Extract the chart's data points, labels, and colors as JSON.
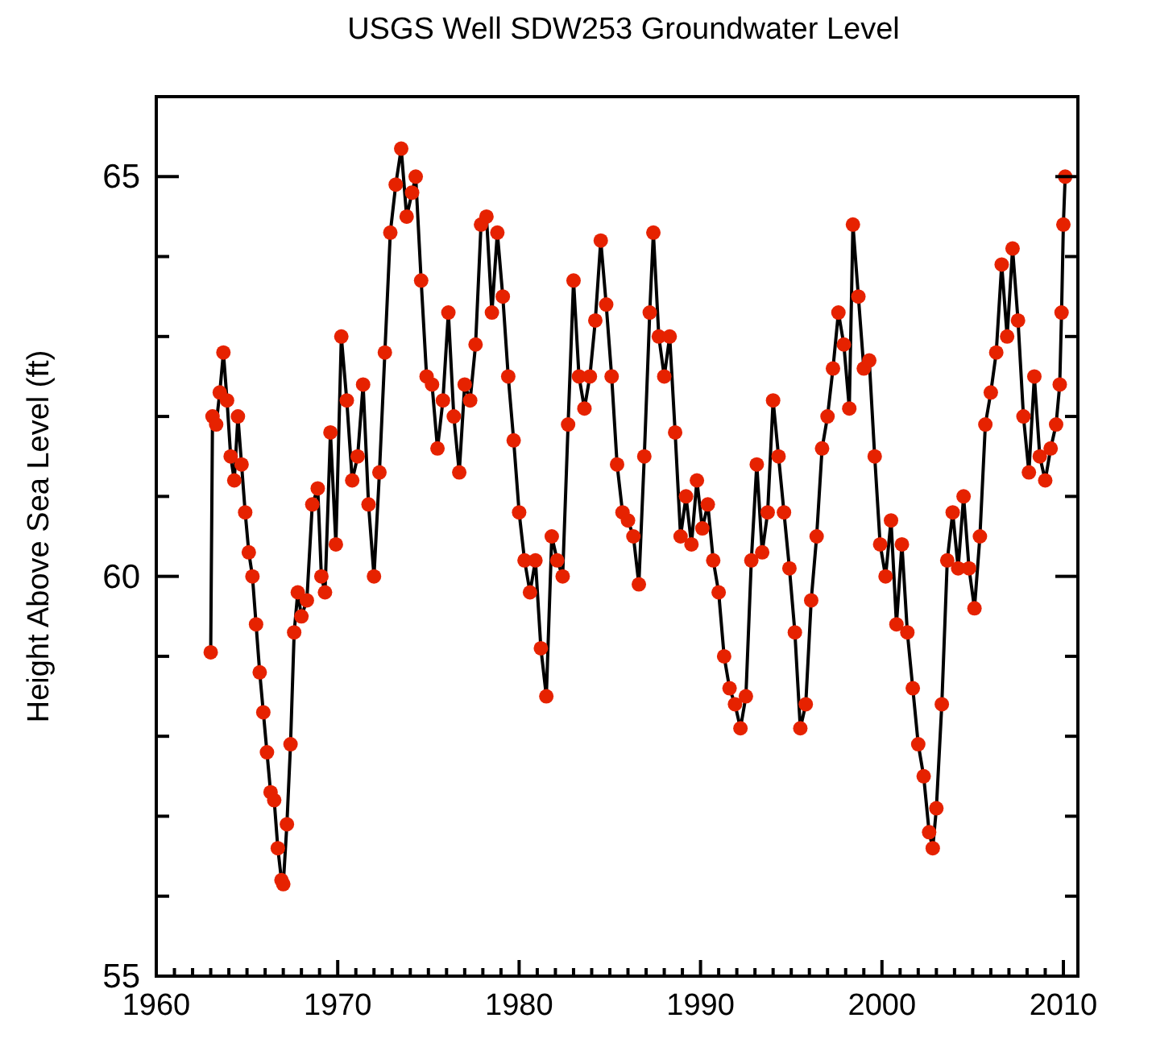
{
  "chart_data": {
    "type": "line",
    "title": "USGS Well SDW253 Groundwater Level",
    "ylabel": "Height Above Sea Level (ft)",
    "xlim": [
      1960,
      2010.8
    ],
    "ylim": [
      55,
      66
    ],
    "xticks": [
      1960,
      {
        "value": 1961,
        "label": null
      },
      {
        "value": 1962,
        "label": null
      },
      {
        "value": 1963,
        "label": null
      },
      {
        "value": 1964,
        "label": null
      },
      {
        "value": 1965,
        "label": null
      },
      {
        "value": 1966,
        "label": null
      },
      {
        "value": 1967,
        "label": null
      },
      {
        "value": 1968,
        "label": null
      },
      {
        "value": 1969,
        "label": null
      },
      1970,
      {
        "value": 1971,
        "label": null
      },
      {
        "value": 1972,
        "label": null
      },
      {
        "value": 1973,
        "label": null
      },
      {
        "value": 1974,
        "label": null
      },
      {
        "value": 1975,
        "label": null
      },
      {
        "value": 1976,
        "label": null
      },
      {
        "value": 1977,
        "label": null
      },
      {
        "value": 1978,
        "label": null
      },
      {
        "value": 1979,
        "label": null
      },
      1980,
      {
        "value": 1981,
        "label": null
      },
      {
        "value": 1982,
        "label": null
      },
      {
        "value": 1983,
        "label": null
      },
      {
        "value": 1984,
        "label": null
      },
      {
        "value": 1985,
        "label": null
      },
      {
        "value": 1986,
        "label": null
      },
      {
        "value": 1987,
        "label": null
      },
      {
        "value": 1988,
        "label": null
      },
      {
        "value": 1989,
        "label": null
      },
      1990,
      {
        "value": 1991,
        "label": null
      },
      {
        "value": 1992,
        "label": null
      },
      {
        "value": 1993,
        "label": null
      },
      {
        "value": 1994,
        "label": null
      },
      {
        "value": 1995,
        "label": null
      },
      {
        "value": 1996,
        "label": null
      },
      {
        "value": 1997,
        "label": null
      },
      {
        "value": 1998,
        "label": null
      },
      {
        "value": 1999,
        "label": null
      },
      2000,
      {
        "value": 2001,
        "label": null
      },
      {
        "value": 2002,
        "label": null
      },
      {
        "value": 2003,
        "label": null
      },
      {
        "value": 2004,
        "label": null
      },
      {
        "value": 2005,
        "label": null
      },
      {
        "value": 2006,
        "label": null
      },
      {
        "value": 2007,
        "label": null
      },
      {
        "value": 2008,
        "label": null
      },
      {
        "value": 2009,
        "label": null
      },
      2010
    ],
    "yticks": [
      55,
      {
        "value": 56,
        "label": null
      },
      {
        "value": 57,
        "label": null
      },
      {
        "value": 58,
        "label": null
      },
      {
        "value": 59,
        "label": null
      },
      60,
      {
        "value": 61,
        "label": null
      },
      {
        "value": 62,
        "label": null
      },
      {
        "value": 63,
        "label": null
      },
      {
        "value": 64,
        "label": null
      },
      65
    ],
    "marker": "circle",
    "line_style": "solid",
    "grid": false,
    "x": [
      1963.0,
      1963.1,
      1963.3,
      1963.5,
      1963.7,
      1963.9,
      1964.1,
      1964.3,
      1964.5,
      1964.7,
      1964.9,
      1965.1,
      1965.3,
      1965.5,
      1965.7,
      1965.9,
      1966.1,
      1966.3,
      1966.5,
      1966.7,
      1966.9,
      1967.0,
      1967.2,
      1967.4,
      1967.6,
      1967.8,
      1968.0,
      1968.3,
      1968.6,
      1968.9,
      1969.1,
      1969.3,
      1969.6,
      1969.9,
      1970.2,
      1970.5,
      1970.8,
      1971.1,
      1971.4,
      1971.7,
      1972.0,
      1972.3,
      1972.6,
      1972.9,
      1973.2,
      1973.5,
      1973.8,
      1974.1,
      1974.3,
      1974.6,
      1974.9,
      1975.2,
      1975.5,
      1975.8,
      1976.1,
      1976.4,
      1976.7,
      1977.0,
      1977.3,
      1977.6,
      1977.9,
      1978.2,
      1978.5,
      1978.8,
      1979.1,
      1979.4,
      1979.7,
      1980.0,
      1980.3,
      1980.6,
      1980.9,
      1981.2,
      1981.5,
      1981.8,
      1982.1,
      1982.4,
      1982.7,
      1983.0,
      1983.3,
      1983.6,
      1983.9,
      1984.2,
      1984.5,
      1984.8,
      1985.1,
      1985.4,
      1985.7,
      1986.0,
      1986.3,
      1986.6,
      1986.9,
      1987.2,
      1987.4,
      1987.7,
      1988.0,
      1988.3,
      1988.6,
      1988.9,
      1989.2,
      1989.5,
      1989.8,
      1990.1,
      1990.4,
      1990.7,
      1991.0,
      1991.3,
      1991.6,
      1991.9,
      1992.2,
      1992.5,
      1992.8,
      1993.1,
      1993.4,
      1993.7,
      1994.0,
      1994.3,
      1994.6,
      1994.9,
      1995.2,
      1995.5,
      1995.8,
      1996.1,
      1996.4,
      1996.7,
      1997.0,
      1997.3,
      1997.6,
      1997.9,
      1998.2,
      1998.4,
      1998.7,
      1999.0,
      1999.3,
      1999.6,
      1999.9,
      2000.2,
      2000.5,
      2000.8,
      2001.1,
      2001.4,
      2001.7,
      2002.0,
      2002.3,
      2002.6,
      2002.8,
      2003.0,
      2003.3,
      2003.6,
      2003.9,
      2004.2,
      2004.5,
      2004.8,
      2005.1,
      2005.4,
      2005.7,
      2006.0,
      2006.3,
      2006.6,
      2006.9,
      2007.2,
      2007.5,
      2007.8,
      2008.1,
      2008.4,
      2008.7,
      2009.0,
      2009.3,
      2009.6,
      2009.8,
      2009.9,
      2010.0,
      2010.1
    ],
    "series": [
      {
        "color": "#e62200",
        "values": [
          59.05,
          62.0,
          61.9,
          62.3,
          62.8,
          62.2,
          61.5,
          61.2,
          62.0,
          61.4,
          60.8,
          60.3,
          60.0,
          59.4,
          58.8,
          58.3,
          57.8,
          57.3,
          57.2,
          56.6,
          56.2,
          56.15,
          56.9,
          57.9,
          59.3,
          59.8,
          59.5,
          59.7,
          60.9,
          61.1,
          60.0,
          59.8,
          61.8,
          60.4,
          63.0,
          62.2,
          61.2,
          61.5,
          62.4,
          60.9,
          60.0,
          61.3,
          62.8,
          64.3,
          64.9,
          65.35,
          64.5,
          64.8,
          65.0,
          63.7,
          62.5,
          62.4,
          61.6,
          62.2,
          63.3,
          62.0,
          61.3,
          62.4,
          62.2,
          62.9,
          64.4,
          64.5,
          63.3,
          64.3,
          63.5,
          62.5,
          61.7,
          60.8,
          60.2,
          59.8,
          60.2,
          59.1,
          58.5,
          60.5,
          60.2,
          60.0,
          61.9,
          63.7,
          62.5,
          62.1,
          62.5,
          63.2,
          64.2,
          63.4,
          62.5,
          61.4,
          60.8,
          60.7,
          60.5,
          59.9,
          61.5,
          63.3,
          64.3,
          63.0,
          62.5,
          63.0,
          61.8,
          60.5,
          61.0,
          60.4,
          61.2,
          60.6,
          60.9,
          60.2,
          59.8,
          59.0,
          58.6,
          58.4,
          58.1,
          58.5,
          60.2,
          61.4,
          60.3,
          60.8,
          62.2,
          61.5,
          60.8,
          60.1,
          59.3,
          58.1,
          58.4,
          59.7,
          60.5,
          61.6,
          62.0,
          62.6,
          63.3,
          62.9,
          62.1,
          64.4,
          63.5,
          62.6,
          62.7,
          61.5,
          60.4,
          60.0,
          60.7,
          59.4,
          60.4,
          59.3,
          58.6,
          57.9,
          57.5,
          56.8,
          56.6,
          57.1,
          58.4,
          60.2,
          60.8,
          60.1,
          61.0,
          60.1,
          59.6,
          60.5,
          61.9,
          62.3,
          62.8,
          63.9,
          63.0,
          64.1,
          63.2,
          62.0,
          61.3,
          62.5,
          61.5,
          61.2,
          61.6,
          61.9,
          62.4,
          63.3,
          64.4,
          65.0
        ]
      }
    ]
  }
}
